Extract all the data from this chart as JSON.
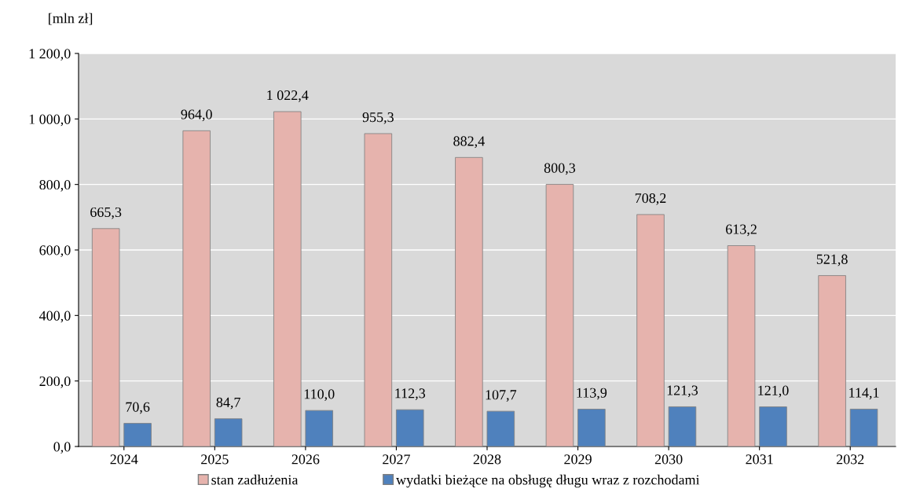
{
  "chart_data": {
    "type": "bar",
    "ylabel": "[mln zł]",
    "categories": [
      "2024",
      "2025",
      "2026",
      "2027",
      "2028",
      "2029",
      "2030",
      "2031",
      "2032"
    ],
    "series": [
      {
        "name": "stan zadłużenia",
        "color": "#e6b3ad",
        "values": [
          665.3,
          964.0,
          1022.4,
          955.3,
          882.4,
          800.3,
          708.2,
          613.2,
          521.8
        ],
        "value_labels": [
          "665,3",
          "964,0",
          "1 022,4",
          "955,3",
          "882,4",
          "800,3",
          "708,2",
          "613,2",
          "521,8"
        ]
      },
      {
        "name": "wydatki bieżące na obsługę długu wraz z rozchodami",
        "color": "#4f81bd",
        "values": [
          70.6,
          84.7,
          110.0,
          112.3,
          107.7,
          113.9,
          121.3,
          121.0,
          114.1
        ],
        "value_labels": [
          "70,6",
          "84,7",
          "110,0",
          "112,3",
          "107,7",
          "113,9",
          "121,3",
          "121,0",
          "114,1"
        ]
      }
    ],
    "ylim": [
      0,
      1200
    ],
    "yticks": [
      {
        "value": 0,
        "label": "0,0"
      },
      {
        "value": 200,
        "label": "200,0"
      },
      {
        "value": 400,
        "label": "400,0"
      },
      {
        "value": 600,
        "label": "600,0"
      },
      {
        "value": 800,
        "label": "800,0"
      },
      {
        "value": 1000,
        "label": "1 000,0"
      },
      {
        "value": 1200,
        "label": "1 200,0"
      }
    ],
    "grid": "y",
    "legend": "bottom"
  }
}
